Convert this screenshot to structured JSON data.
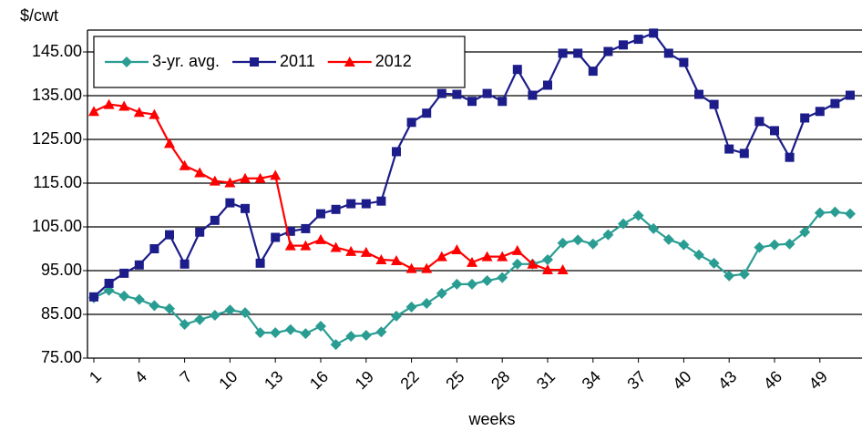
{
  "chart_data": {
    "type": "line",
    "y_label": "$/cwt",
    "x_label": "weeks",
    "categories": [
      "1",
      null,
      null,
      "4",
      null,
      null,
      "7",
      null,
      null,
      "10",
      null,
      null,
      "13",
      null,
      null,
      "16",
      null,
      null,
      "19",
      null,
      null,
      "22",
      null,
      null,
      "25",
      null,
      null,
      "28",
      null,
      null,
      "31",
      null,
      null,
      "34",
      null,
      null,
      "37",
      null,
      null,
      "40",
      null,
      null,
      "43",
      null,
      null,
      "46",
      null,
      null,
      "49",
      null,
      null
    ],
    "series": [
      {
        "name": "3-yr. avg.",
        "color": "#2a9d93",
        "marker": "diamond",
        "values": [
          88.8,
          90.5,
          89.2,
          88.4,
          87,
          86.3,
          82.7,
          83.8,
          84.8,
          86,
          85.4,
          80.8,
          80.8,
          81.5,
          80.6,
          82.3,
          78.1,
          80,
          80.2,
          81,
          84.6,
          86.7,
          87.5,
          89.8,
          91.9,
          91.9,
          92.7,
          93.4,
          96.5,
          96.5,
          97.5,
          101.3,
          102,
          101.1,
          103.2,
          105.7,
          107.6,
          104.6,
          102.1,
          100.9,
          98.6,
          96.7,
          93.8,
          94.2,
          100.3,
          100.9,
          101.1,
          103.8,
          108.2,
          108.4,
          108
        ]
      },
      {
        "name": "2011",
        "color": "#1c1c8a",
        "marker": "square",
        "values": [
          89,
          92.1,
          94.4,
          96.3,
          100,
          103.2,
          96.5,
          103.8,
          106.5,
          110.5,
          109.2,
          96.7,
          102.6,
          104,
          104.6,
          108,
          109,
          110.3,
          110.3,
          110.9,
          122.2,
          128.9,
          131,
          135.5,
          135.3,
          133.7,
          135.5,
          133.7,
          141,
          135.1,
          137.4,
          144.7,
          144.7,
          140.6,
          145.1,
          146.6,
          147.9,
          149.3,
          144.7,
          142.6,
          135.3,
          133,
          122.8,
          121.8,
          129.1,
          127,
          120.9,
          129.9,
          131.4,
          133.2,
          135.1
        ]
      },
      {
        "name": "2012",
        "color": "#ff0000",
        "marker": "triangle",
        "values": [
          131.4,
          133,
          132.6,
          131.2,
          130.7,
          124.1,
          119,
          117.4,
          115.5,
          115.1,
          116.1,
          116.1,
          116.8,
          100.7,
          100.7,
          102.1,
          100.3,
          99.4,
          99.2,
          97.5,
          97.3,
          95.5,
          95.5,
          98.2,
          99.8,
          96.9,
          98.2,
          98.2,
          99.6,
          96.5,
          95.2,
          95.2,
          null,
          null,
          null,
          null,
          null,
          null,
          null,
          null,
          null,
          null,
          null,
          null,
          null,
          null,
          null,
          null,
          null,
          null,
          null
        ]
      }
    ],
    "ylim": [
      75,
      150
    ],
    "yticks": [
      {
        "value": 75,
        "label": "75.00"
      },
      {
        "value": 85,
        "label": "85.00"
      },
      {
        "value": 95,
        "label": "95.00"
      },
      {
        "value": 105,
        "label": "105.00"
      },
      {
        "value": 115,
        "label": "115.00"
      },
      {
        "value": 125,
        "label": "125.00"
      },
      {
        "value": 135,
        "label": "135.00"
      },
      {
        "value": 145,
        "label": "145.00"
      }
    ],
    "grid": true,
    "legend": "top-left"
  }
}
